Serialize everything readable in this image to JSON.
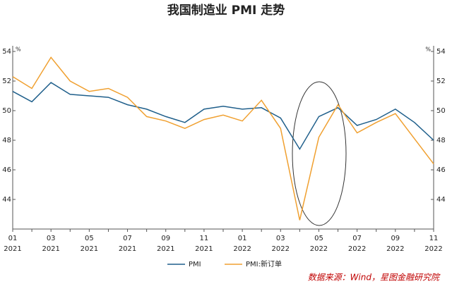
{
  "chart_data": {
    "type": "line",
    "title": "我国制造业 PMI 走势",
    "unit": "%",
    "categories": [
      {
        "month": "01",
        "year": "2021"
      },
      null,
      {
        "month": "03",
        "year": "2021"
      },
      null,
      {
        "month": "05",
        "year": "2021"
      },
      null,
      {
        "month": "07",
        "year": "2021"
      },
      null,
      {
        "month": "09",
        "year": "2021"
      },
      null,
      {
        "month": "11",
        "year": "2021"
      },
      null,
      {
        "month": "01",
        "year": "2022"
      },
      null,
      {
        "month": "03",
        "year": "2022"
      },
      null,
      {
        "month": "05",
        "year": "2022"
      },
      null,
      {
        "month": "07",
        "year": "2022"
      },
      null,
      {
        "month": "09",
        "year": "2022"
      },
      null,
      {
        "month": "11",
        "year": "2022"
      }
    ],
    "series": [
      {
        "name": "PMI",
        "color": "#1f5f8b",
        "values": [
          51.3,
          50.6,
          51.9,
          51.1,
          51.0,
          50.9,
          50.4,
          50.1,
          49.6,
          49.2,
          50.1,
          50.3,
          50.1,
          50.2,
          49.5,
          47.4,
          49.6,
          50.2,
          49.0,
          49.4,
          50.1,
          49.2,
          48.0
        ]
      },
      {
        "name": "PMI:新订单",
        "color": "#f0a030",
        "values": [
          52.3,
          51.5,
          53.6,
          52.0,
          51.3,
          51.5,
          50.9,
          49.6,
          49.3,
          48.8,
          49.4,
          49.7,
          49.3,
          50.7,
          48.8,
          42.6,
          48.2,
          50.4,
          48.5,
          49.2,
          49.8,
          48.1,
          46.4
        ]
      }
    ],
    "ylim": [
      42,
      54
    ],
    "yticks": [
      44,
      46,
      48,
      50,
      52,
      54
    ],
    "source": "数据来源：Wind，星图金融研究院"
  }
}
